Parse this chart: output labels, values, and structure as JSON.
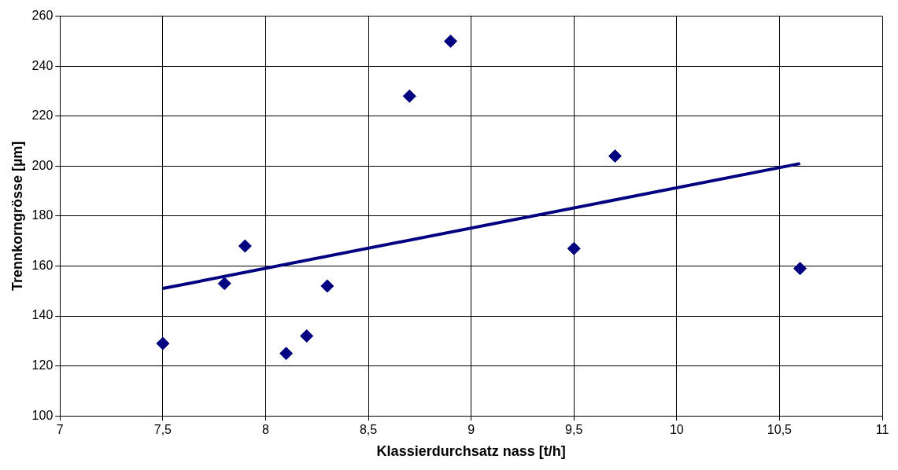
{
  "chart_data": {
    "type": "scatter",
    "xlabel": "Klassierdurchsatz nass [t/h]",
    "ylabel": "Trennkorngrösse [µm]",
    "x": [
      7.5,
      7.8,
      7.9,
      8.1,
      8.2,
      8.3,
      8.7,
      8.9,
      9.5,
      9.7,
      10.6
    ],
    "series": [
      {
        "color": "#000080",
        "values": [
          129,
          153,
          168,
          125,
          132,
          152,
          228,
          250,
          167,
          204,
          159
        ],
        "marker": "diamond"
      },
      {
        "type": "line",
        "color": "#000080",
        "x": [
          7.5,
          10.6
        ],
        "values": [
          151,
          201
        ],
        "marker": "none",
        "line_style": "solid"
      }
    ],
    "xlim": [
      7,
      11
    ],
    "xticks": [
      7,
      {
        "value": 7.5,
        "label": "7,5"
      },
      8,
      {
        "value": 8.5,
        "label": "8,5"
      },
      9,
      {
        "value": 9.5,
        "label": "9,5"
      },
      10,
      {
        "value": 10.5,
        "label": "10,5"
      },
      11
    ],
    "ylim": [
      100,
      260
    ],
    "yticks": [
      100,
      120,
      140,
      160,
      180,
      200,
      220,
      240,
      260
    ],
    "grid": true,
    "legend": false
  }
}
